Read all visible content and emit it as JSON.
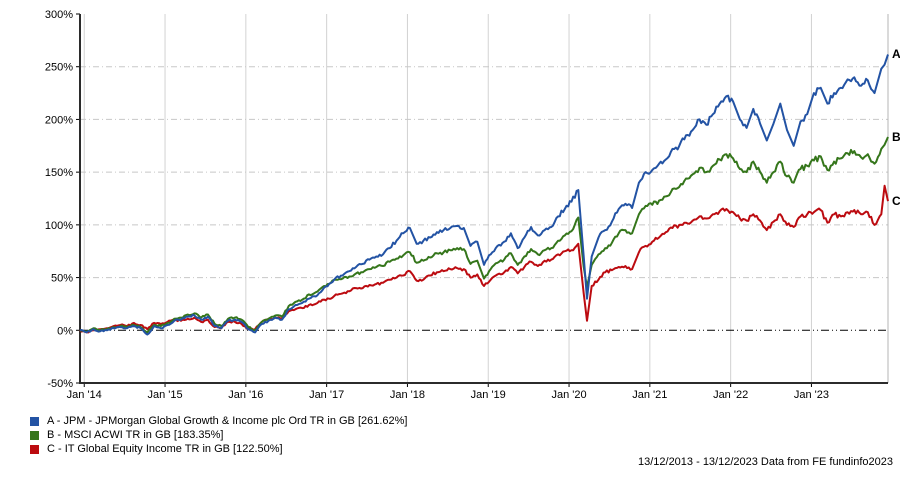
{
  "footer": {
    "text": "13/12/2013 - 13/12/2023 Data from FE fundinfo2023"
  },
  "chart_data": {
    "type": "line",
    "title": "",
    "grid": true,
    "legend_position": "bottom-left",
    "x_axis": {
      "range_months": [
        0,
        120
      ],
      "tick_labels": [
        "Jan '14",
        "Jan '15",
        "Jan '16",
        "Jan '17",
        "Jan '18",
        "Jan '19",
        "Jan '20",
        "Jan '21",
        "Jan '22",
        "Jan '23"
      ],
      "tick_positions_months": [
        0.63,
        12.63,
        24.63,
        36.63,
        48.63,
        60.63,
        72.63,
        84.63,
        96.63,
        108.63
      ]
    },
    "y_axis": {
      "unit": "%",
      "range": [
        -50,
        300
      ],
      "tick_values": [
        300,
        250,
        200,
        150,
        100,
        50,
        0,
        -50
      ],
      "tick_labels": [
        "300%",
        "250%",
        "200%",
        "150%",
        "100%",
        "50%",
        "0%",
        "-50%"
      ],
      "zero_line": true
    },
    "x_months": [
      0,
      1,
      2,
      3,
      4,
      5,
      6,
      7,
      8,
      9,
      10,
      11,
      12,
      13,
      14,
      15,
      16,
      17,
      18,
      19,
      20,
      21,
      22,
      23,
      24,
      25,
      26,
      27,
      28,
      29,
      30,
      31,
      32,
      33,
      34,
      35,
      36,
      37,
      38,
      39,
      40,
      41,
      42,
      43,
      44,
      45,
      46,
      47,
      48,
      49,
      50,
      51,
      52,
      53,
      54,
      55,
      56,
      57,
      58,
      59,
      60,
      61,
      62,
      63,
      64,
      65,
      66,
      67,
      68,
      69,
      70,
      71,
      72,
      73,
      74,
      74.8,
      75.3,
      76,
      77,
      78,
      79,
      80,
      81,
      82,
      83,
      84,
      85,
      86,
      87,
      88,
      89,
      90,
      91,
      92,
      93,
      94,
      95,
      96,
      97,
      98,
      99,
      100,
      101,
      102,
      103,
      104,
      105,
      106,
      107,
      108,
      109,
      110,
      111,
      112,
      113,
      114,
      115,
      116,
      117,
      118,
      119,
      119.5,
      120
    ],
    "series": [
      {
        "id": "A",
        "end_label": "A",
        "color": "#2353a4",
        "legend_label": "A - JPM - JPMorgan Global Growth & Income plc Ord TR in GB [261.62%]",
        "final_value_pct": 261.62,
        "values_pct": [
          0,
          -2,
          1,
          -1,
          0,
          2,
          3,
          2,
          4,
          2,
          -4,
          4,
          2,
          5,
          9,
          10,
          13,
          14,
          10,
          13,
          4,
          2,
          9,
          10,
          8,
          1,
          -2,
          6,
          9,
          12,
          10,
          20,
          24,
          26,
          30,
          32,
          38,
          44,
          50,
          52,
          56,
          60,
          63,
          67,
          70,
          72,
          78,
          85,
          92,
          97,
          82,
          85,
          88,
          93,
          95,
          97,
          99,
          97,
          80,
          84,
          62,
          72,
          80,
          84,
          92,
          78,
          88,
          98,
          90,
          95,
          98,
          108,
          115,
          122,
          133,
          70,
          30,
          70,
          88,
          95,
          103,
          115,
          120,
          116,
          140,
          150,
          152,
          158,
          162,
          172,
          175,
          185,
          190,
          200,
          195,
          205,
          215,
          222,
          217,
          200,
          192,
          210,
          196,
          180,
          196,
          215,
          190,
          175,
          198,
          205,
          225,
          230,
          215,
          225,
          230,
          238,
          240,
          232,
          237,
          225,
          248,
          252,
          261.62
        ]
      },
      {
        "id": "B",
        "end_label": "B",
        "color": "#35761b",
        "legend_label": "B - MSCI ACWI TR in GB [183.35%]",
        "final_value_pct": 183.35,
        "values_pct": [
          0,
          -1,
          2,
          0,
          1,
          3,
          4,
          3,
          5,
          3,
          -2,
          5,
          4,
          7,
          11,
          12,
          15,
          16,
          12,
          15,
          6,
          4,
          11,
          12,
          10,
          3,
          0,
          8,
          11,
          14,
          13,
          23,
          27,
          29,
          34,
          36,
          41,
          44,
          48,
          49,
          51,
          54,
          55,
          58,
          60,
          61,
          65,
          68,
          71,
          74,
          64,
          66,
          69,
          73,
          74,
          76,
          78,
          77,
          63,
          66,
          49,
          58,
          64,
          67,
          73,
          62,
          70,
          77,
          72,
          76,
          78,
          85,
          90,
          94,
          107,
          60,
          41,
          62,
          72,
          78,
          83,
          92,
          95,
          92,
          110,
          118,
          119,
          123,
          127,
          134,
          136,
          144,
          148,
          154,
          150,
          156,
          162,
          167,
          163,
          153,
          150,
          160,
          150,
          140,
          150,
          160,
          146,
          140,
          153,
          156,
          161,
          165,
          152,
          160,
          163,
          168,
          170,
          164,
          167,
          158,
          172,
          176,
          183.35
        ]
      },
      {
        "id": "C",
        "end_label": "C",
        "color": "#bc0b10",
        "legend_label": "C - IT Global Equity Income TR in GB [122.50%]",
        "final_value_pct": 122.5,
        "values_pct": [
          0,
          -2,
          0,
          1,
          2,
          4,
          5,
          4,
          7,
          5,
          1,
          7,
          6,
          8,
          10,
          9,
          11,
          12,
          8,
          10,
          3,
          2,
          8,
          8,
          6,
          1,
          1,
          8,
          10,
          12,
          11,
          18,
          20,
          21,
          24,
          25,
          29,
          30,
          34,
          35,
          37,
          40,
          40,
          43,
          44,
          45,
          48,
          50,
          52,
          56,
          47,
          48,
          52,
          55,
          56,
          58,
          59,
          58,
          50,
          53,
          42,
          48,
          53,
          55,
          60,
          54,
          60,
          65,
          61,
          66,
          67,
          72,
          75,
          76,
          82,
          35,
          9,
          42,
          48,
          55,
          57,
          60,
          61,
          58,
          74,
          80,
          84,
          88,
          93,
          97,
          100,
          102,
          104,
          108,
          106,
          110,
          113,
          115,
          112,
          106,
          104,
          110,
          104,
          95,
          103,
          110,
          100,
          98,
          108,
          110,
          112,
          114,
          102,
          110,
          108,
          112,
          114,
          110,
          112,
          100,
          110,
          137,
          122.5
        ]
      }
    ]
  }
}
